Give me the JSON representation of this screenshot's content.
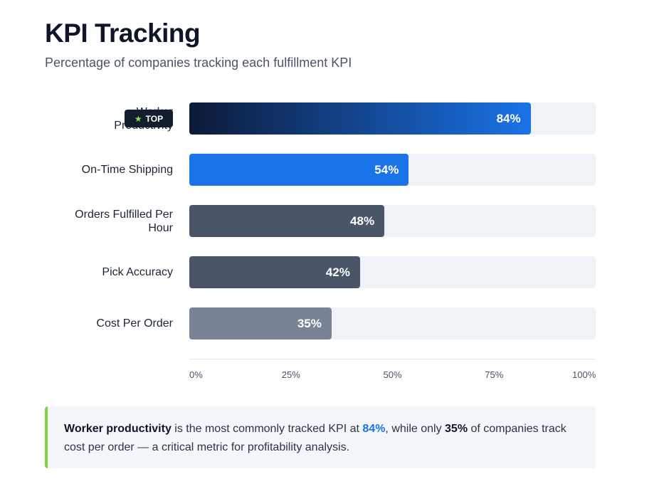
{
  "header": {
    "title": "KPI Tracking",
    "subtitle": "Percentage of companies tracking each fulfillment KPI"
  },
  "badge": {
    "icon": "star-icon",
    "label": "TOP"
  },
  "colors": {
    "worker_start": "#0c1a38",
    "worker_end": "#1a73e8",
    "blue": "#1a73e8",
    "slate": "#4a5568",
    "gray": "#7a8396",
    "track": "#eff2f6",
    "accent_green": "#7ed63e"
  },
  "chart_data": {
    "type": "bar",
    "orientation": "horizontal",
    "title": "KPI Tracking",
    "subtitle": "Percentage of companies tracking each fulfillment KPI",
    "categories": [
      "Worker Productivity",
      "On-Time Shipping",
      "Orders Fulfilled Per Hour",
      "Pick Accuracy",
      "Cost Per Order"
    ],
    "label_lines": [
      [
        "Worker",
        "Productivity"
      ],
      [
        "On-Time Shipping"
      ],
      [
        "Orders Fulfilled Per",
        "Hour"
      ],
      [
        "Pick Accuracy"
      ],
      [
        "Cost Per Order"
      ]
    ],
    "values": [
      84,
      54,
      48,
      42,
      35
    ],
    "value_labels": [
      "84%",
      "54%",
      "48%",
      "42%",
      "35%"
    ],
    "xlim": [
      0,
      100
    ],
    "ticks": [
      "0%",
      "25%",
      "50%",
      "75%",
      "100%"
    ],
    "grid": false,
    "legend": "none"
  },
  "note": {
    "strong_1": "Worker productivity",
    "text_1": " is the most commonly tracked KPI at ",
    "accent_value": "84%",
    "text_2": ", while only ",
    "strong_2": "35%",
    "text_3": " of companies track cost per order — a critical metric for profitability analysis."
  }
}
